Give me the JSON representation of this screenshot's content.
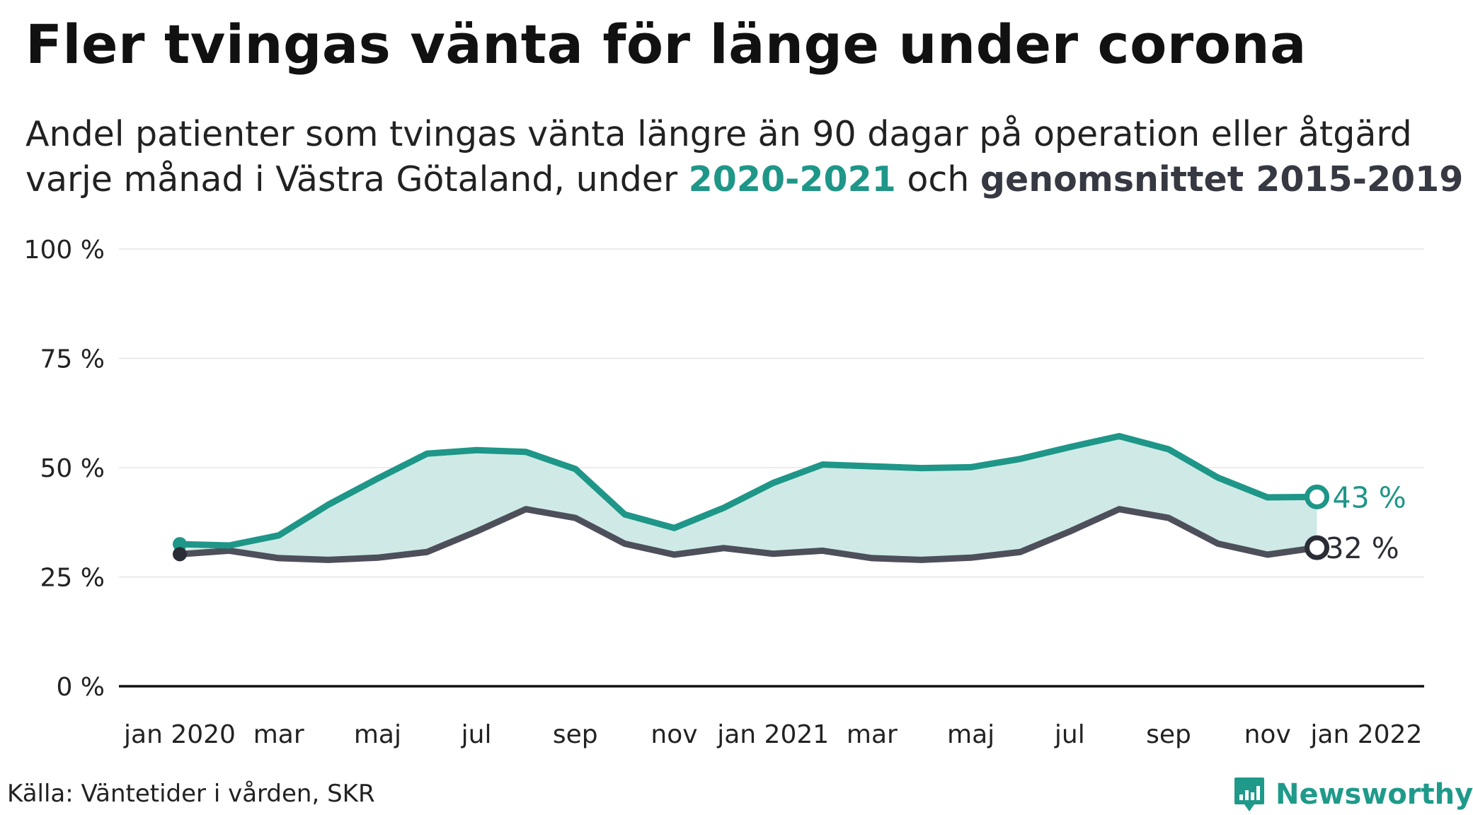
{
  "title": "Fler tvingas vänta för länge under corona",
  "subtitle": {
    "line1": "Andel patienter som tvingas vänta längre än 90 dagar på operation eller åtgärd",
    "line2_prefix": "varje månad i Västra Götaland, under ",
    "highlight_current": "2020-2021",
    "line2_middle": " och ",
    "highlight_avg": "genomsnittet 2015-2019"
  },
  "colors": {
    "current": "#1e9688",
    "average": "#4d4f5a",
    "area": "#cfeae6",
    "grid": "#e6e6e6",
    "axis": "#111111"
  },
  "chart_data": {
    "type": "line",
    "x_unit": "month",
    "x": [
      "2020-01",
      "2020-02",
      "2020-03",
      "2020-04",
      "2020-05",
      "2020-06",
      "2020-07",
      "2020-08",
      "2020-09",
      "2020-10",
      "2020-11",
      "2020-12",
      "2021-01",
      "2021-02",
      "2021-03",
      "2021-04",
      "2021-05",
      "2021-06",
      "2021-07",
      "2021-08",
      "2021-09",
      "2021-10",
      "2021-11",
      "2021-12"
    ],
    "x_tick_values": [
      "2020-01",
      "2020-03",
      "2020-05",
      "2020-07",
      "2020-09",
      "2020-11",
      "2021-01",
      "2021-03",
      "2021-05",
      "2021-07",
      "2021-09",
      "2021-11",
      "2022-01"
    ],
    "x_tick_labels": [
      "jan 2020",
      "mar",
      "maj",
      "jul",
      "sep",
      "nov",
      "jan 2021",
      "mar",
      "maj",
      "jul",
      "sep",
      "nov",
      "jan 2022"
    ],
    "ylim": [
      0,
      100
    ],
    "y_ticks": [
      0,
      25,
      50,
      75,
      100
    ],
    "y_tick_labels": [
      "0 %",
      "25 %",
      "50 %",
      "75 %",
      "100 %"
    ],
    "grid": true,
    "area_between_series": true,
    "series": [
      {
        "name": "2020-2021",
        "values": [
          32.5,
          32.2,
          34.5,
          41.5,
          47.5,
          53.2,
          54.0,
          53.6,
          49.7,
          39.3,
          36.2,
          40.8,
          46.5,
          50.7,
          50.3,
          49.9,
          50.1,
          52.0,
          54.7,
          57.2,
          54.2,
          47.7,
          43.2,
          43.3
        ],
        "end_label": "43 %"
      },
      {
        "name": "genomsnittet 2015-2019",
        "values": [
          30.2,
          31.0,
          29.3,
          28.9,
          29.4,
          30.7,
          35.4,
          40.5,
          38.5,
          32.6,
          30.1,
          31.6,
          30.3,
          31.0,
          29.3,
          28.9,
          29.4,
          30.7,
          35.4,
          40.5,
          38.5,
          32.6,
          30.1,
          31.7
        ],
        "end_label": "32 %"
      }
    ]
  },
  "source": "Källa: Väntetider i vården, SKR",
  "brand": {
    "name": "Newsworthy",
    "icon": "newsworthy-logo-icon"
  }
}
